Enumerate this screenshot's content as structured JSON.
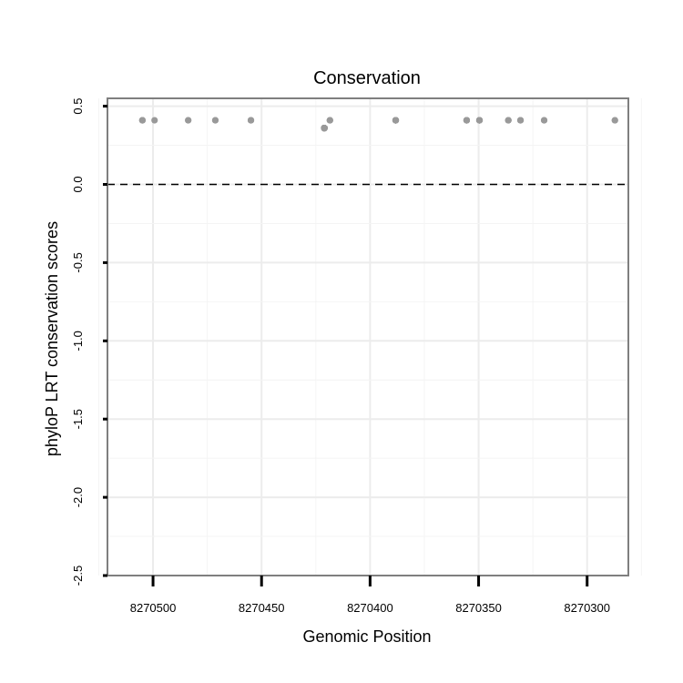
{
  "chart_data": {
    "type": "scatter",
    "title": "Conservation",
    "xlabel": "Genomic Position",
    "ylabel": "phyloP LRT conservation scores",
    "x_reversed": true,
    "xlim": [
      8270521,
      8270281
    ],
    "ylim": [
      -2.5,
      0.55
    ],
    "x_ticks": [
      8270500,
      8270450,
      8270400,
      8270350,
      8270300
    ],
    "y_ticks": [
      0.5,
      0.0,
      -0.5,
      -1.0,
      -1.5,
      -2.0,
      -2.5
    ],
    "y_tick_labels": [
      "0.5",
      "0.0",
      "-0.5",
      "-1.0",
      "-1.5",
      "-2.0",
      "-2.5"
    ],
    "reference_line": {
      "y": 0.0,
      "style": "dashed"
    },
    "grid": true,
    "colors": {
      "points": "#999999",
      "trend": "#3366ff",
      "band": "#d0d0d0",
      "reference": "#000000"
    },
    "points": [
      [
        8270499.3,
        0.41
      ],
      [
        8270471.3,
        0.41
      ],
      [
        8270471.3,
        0.41
      ],
      [
        8270418.5,
        0.41
      ],
      [
        8270418.5,
        0.41
      ],
      [
        8270418.5,
        0.41
      ],
      [
        8270454.9,
        0.41
      ],
      [
        8270454.9,
        0.41
      ],
      [
        8270454.9,
        0.41
      ],
      [
        8270504.9,
        0.41
      ],
      [
        8270504.9,
        0.41
      ],
      [
        8270504.9,
        0.41
      ],
      [
        8270504.9,
        0.41
      ],
      [
        8270483.8,
        0.41
      ],
      [
        8270483.8,
        0.41
      ],
      [
        8270330.7,
        0.41
      ],
      [
        8270330.7,
        0.41
      ],
      [
        8270330.7,
        0.41
      ],
      [
        8270336.3,
        0.41
      ],
      [
        8270336.3,
        0.41
      ],
      [
        8270336.3,
        0.41
      ],
      [
        8270319.8,
        0.41
      ],
      [
        8270319.8,
        0.41
      ],
      [
        8270287.2,
        0.41
      ],
      [
        8270287.2,
        0.41
      ],
      [
        8270355.5,
        0.41
      ],
      [
        8270355.5,
        0.41
      ],
      [
        8270355.5,
        0.41
      ],
      [
        8270355.5,
        0.41
      ],
      [
        8270355.5,
        0.41
      ],
      [
        8270355.5,
        0.41
      ],
      [
        8270355.5,
        0.41
      ],
      [
        8270349.6,
        0.41
      ],
      [
        8270349.6,
        0.41
      ],
      [
        8270349.6,
        0.41
      ],
      [
        8270349.6,
        0.41
      ],
      [
        8270349.6,
        0.41
      ],
      [
        8270349.6,
        0.41
      ],
      [
        8270349.6,
        0.41
      ],
      [
        8270349.6,
        0.41
      ],
      [
        8270349.6,
        0.41
      ],
      [
        8270388.2,
        0.41
      ],
      [
        8270388.2,
        0.41
      ],
      [
        8270388.2,
        0.41
      ],
      [
        8270388.2,
        0.41
      ],
      [
        8270388.2,
        0.41
      ],
      [
        8270388.2,
        0.41
      ],
      [
        8270388.2,
        0.41
      ],
      [
        8270388.2,
        0.41
      ],
      [
        8270388.2,
        0.41
      ],
      [
        8270388.2,
        0.41
      ],
      [
        8270388.2,
        0.41
      ],
      [
        8270388.2,
        0.41
      ],
      [
        8270388.2,
        0.41
      ],
      [
        8270421.1,
        0.36
      ],
      [
        8270421.1,
        0.36
      ],
      [
        8270421.1,
        0.36
      ],
      [
        8270421.1,
        0.36
      ],
      [
        8270421.1,
        0.36
      ],
      [
        8270421.1,
        0.36
      ],
      [
        8270421.1,
        0.36
      ],
      [
        8270421.1,
        0.36
      ],
      [
        8270421.1,
        0.36
      ],
      [
        8270421.1,
        0.36
      ],
      [
        8270421.1,
        0.36
      ],
      [
        8270421.1,
        0.36
      ],
      [
        8270421.1,
        0.36
      ],
      [
        8270421.1,
        0.36
      ],
      [
        8270421.1,
        0.36
      ],
      [
        8270421.1,
        0.36
      ],
      [
        8270421.1,
        0.36
      ],
      [
        8270421.1,
        0.36
      ],
      [
        8270421.1,
        0.36
      ],
      [
        8270421.1,
        0.36
      ],
      [
        8270421.1,
        0.36
      ],
      [
        8270421.1,
        0.36
      ],
      [
        8270421.1,
        0.36
      ],
      [
        8270421.1,
        0.36
      ],
      [
        8270421.1,
        0.36
      ],
      [
        8270421.1,
        0.36
      ],
      [
        8270421.1,
        0.36
      ],
      [
        8270421.1,
        0.36
      ],
      [
        8270421.1,
        0.36
      ],
      [
        8270421.1,
        0.36
      ],
      [
        8270421.1,
        0.36
      ],
      [
        8270421.1,
        0.36
      ],
      [
        8270421.1,
        0.36
      ],
      [
        8270421.1,
        0.36
      ],
      [
        8270421.1,
        0.36
      ],
      [
        8270421.1,
        0.36
      ],
      [
        8270421.1,
        0.36
      ],
      [
        8270421.1,
        0.36
      ],
      [
        8270421.1,
        0.36
      ],
      [
        8270421.1,
        0.36
      ],
      [
        8270421.1,
        0.36
      ],
      [
        8270421.1,
        0.36
      ],
      [
        8270421.1,
        0.36
      ],
      [
        8270421.1,
        0.36
      ],
      [
        8270421.1,
        0.36
      ],
      [
        8270421.1,
        0.36
      ],
      [
        8270421.1,
        0.36
      ],
      [
        8270421.1,
        0.36
      ],
      [
        8270421.1,
        0.36
      ],
      [
        8270421.1,
        0.36
      ],
      [
        8270421.1,
        0.36
      ],
      [
        8270421.1,
        0.36
      ],
      [
        8270421.1,
        0.36
      ],
      [
        8270421.1,
        0.36
      ],
      [
        8270421.1,
        0.36
      ],
      [
        8270421.1,
        0.36
      ],
      [
        8270421.1,
        0.36
      ],
      [
        8270421.1,
        0.36
      ],
      [
        8270421.1,
        0.36
      ],
      [
        8270421.1,
        0.36
      ],
      [
        8270421.1,
        0.36
      ],
      [
        8270421.1,
        0.36
      ],
      [
        8270421.1,
        0.36
      ],
      [
        8270421.1,
        0.36
      ],
      [
        8270421.1,
        0.36
      ],
      [
        8270421.1,
        0.36
      ],
      [
        8270421.1,
        0.36
      ],
      [
        8270421.1,
        0.36
      ],
      [
        8270421.1,
        0.36
      ],
      [
        8270421.1,
        0.36
      ],
      [
        8270421.1,
        0.36
      ],
      [
        8270421.1,
        0.36
      ],
      [
        8270421.1,
        0.36
      ],
      [
        8270421.1,
        0.36
      ],
      [
        8270421.1,
        0.36
      ],
      [
        8270421.1,
        0.36
      ],
      [
        8270421.1,
        0.36
      ],
      [
        8270421.1,
        0.36
      ],
      [
        8270421.1,
        0.36
      ],
      [
        8270421.1,
        0.36
      ],
      [
        8270421.1,
        0.36
      ],
      [
        8270421.1,
        0.36
      ],
      [
        8270421.1,
        0.36
      ],
      [
        8270421.1,
        0.36
      ],
      [
        8270421.1,
        0.36
      ],
      [
        8270421.1,
        0.36
      ],
      [
        8270421.1,
        0.36
      ],
      [
        8270421.1,
        0.36
      ],
      [
        8270421.1,
        0.36
      ],
      [
        8270421.1,
        0.36
      ]
    ]
  }
}
